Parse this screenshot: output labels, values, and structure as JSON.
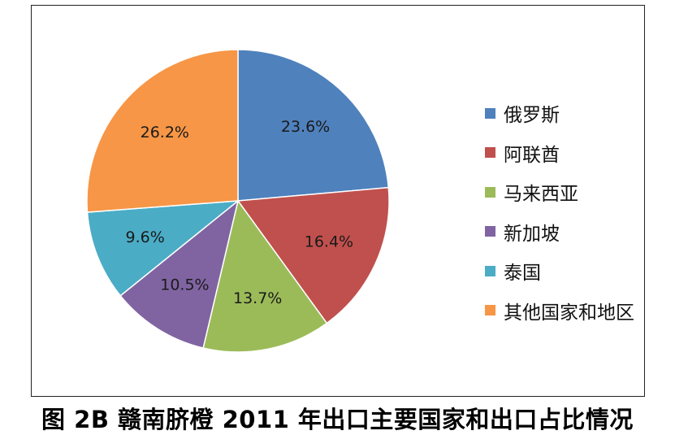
{
  "caption": "图 2B 赣南脐橙 2011 年出口主要国家和出口占比情况",
  "chart_data": {
    "type": "pie",
    "start_angle_deg": 0,
    "direction": "clockwise",
    "legend_position": "right",
    "slices": [
      {
        "label": "俄罗斯",
        "value": 23.6,
        "display": "23.6%",
        "color": "#4F81BD"
      },
      {
        "label": "阿联酋",
        "value": 16.4,
        "display": "16.4%",
        "color": "#C0504D"
      },
      {
        "label": "马来西亚",
        "value": 13.7,
        "display": "13.7%",
        "color": "#9BBB59"
      },
      {
        "label": "新加坡",
        "value": 10.5,
        "display": "10.5%",
        "color": "#8064A2"
      },
      {
        "label": "泰国",
        "value": 9.6,
        "display": "9.6%",
        "color": "#4BACC6"
      },
      {
        "label": "其他国家和地区",
        "value": 26.2,
        "display": "26.2%",
        "color": "#F79646"
      }
    ]
  }
}
